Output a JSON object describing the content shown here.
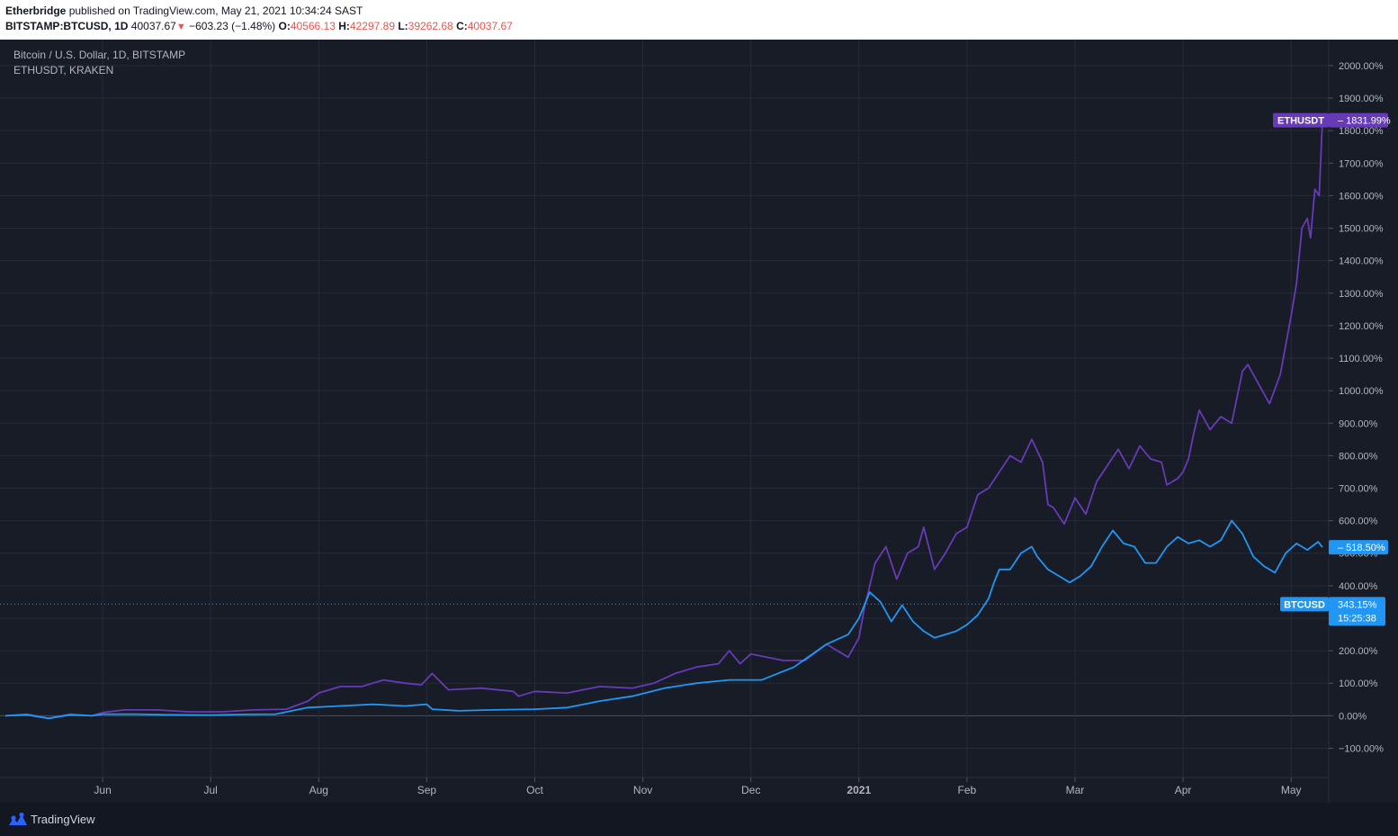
{
  "header": {
    "author": "Etherbridge",
    "published_text": "published on TradingView.com, May 21, 2021 10:34:24 SAST",
    "symbol": "BITSTAMP:BTCUSD, 1D",
    "last": "40037.67",
    "change_arrow": "▼",
    "change": "−603.23 (−1.48%)",
    "o_label": "O:",
    "o_value": "40566.13",
    "h_label": "H:",
    "h_value": "42297.89",
    "l_label": "L:",
    "l_value": "39262.68",
    "c_label": "C:",
    "c_value": "40037.67"
  },
  "legend": {
    "main": "Bitcoin / U.S. Dollar, 1D, BITSTAMP",
    "compare": "ETHUSDT, KRAKEN"
  },
  "footer": {
    "brand": "TradingView"
  },
  "colors": {
    "eth": "#673ab7",
    "btc": "#2196f3",
    "background": "#181c27",
    "grid": "#262b38",
    "text": "#b2b5be"
  },
  "chart_data": {
    "type": "line",
    "ylim": [
      -190,
      2080
    ],
    "y_ticks": [
      "2000.00%",
      "1900.00%",
      "1800.00%",
      "1700.00%",
      "1600.00%",
      "1500.00%",
      "1400.00%",
      "1300.00%",
      "1200.00%",
      "1100.00%",
      "1000.00%",
      "900.00%",
      "800.00%",
      "700.00%",
      "600.00%",
      "500.00%",
      "400.00%",
      "300.00%",
      "200.00%",
      "100.00%",
      "0.00%",
      "−100.00%"
    ],
    "x_ticks": [
      {
        "label": "Jun",
        "month": 1
      },
      {
        "label": "Jul",
        "month": 2
      },
      {
        "label": "Aug",
        "month": 3
      },
      {
        "label": "Sep",
        "month": 4
      },
      {
        "label": "Oct",
        "month": 5
      },
      {
        "label": "Nov",
        "month": 6
      },
      {
        "label": "Dec",
        "month": 7
      },
      {
        "label": "2021",
        "month": 8
      },
      {
        "label": "Feb",
        "month": 9
      },
      {
        "label": "Mar",
        "month": 10
      },
      {
        "label": "Apr",
        "month": 11
      },
      {
        "label": "May",
        "month": 12
      }
    ],
    "x_start_month": 0.1,
    "x_end_month": 12.29,
    "series": [
      {
        "name": "ETHUSDT",
        "color": "#673ab7",
        "last_label": "1831.99%",
        "points": [
          [
            0.1,
            0
          ],
          [
            0.3,
            5
          ],
          [
            0.5,
            -8
          ],
          [
            0.7,
            5
          ],
          [
            0.9,
            0
          ],
          [
            1.0,
            10
          ],
          [
            1.2,
            18
          ],
          [
            1.5,
            18
          ],
          [
            1.8,
            12
          ],
          [
            2.1,
            12
          ],
          [
            2.4,
            18
          ],
          [
            2.7,
            20
          ],
          [
            2.9,
            45
          ],
          [
            3.0,
            70
          ],
          [
            3.2,
            90
          ],
          [
            3.4,
            90
          ],
          [
            3.5,
            100
          ],
          [
            3.6,
            110
          ],
          [
            3.8,
            100
          ],
          [
            3.95,
            95
          ],
          [
            4.05,
            130
          ],
          [
            4.2,
            80
          ],
          [
            4.5,
            85
          ],
          [
            4.8,
            75
          ],
          [
            4.85,
            60
          ],
          [
            5.0,
            75
          ],
          [
            5.3,
            70
          ],
          [
            5.6,
            90
          ],
          [
            5.9,
            85
          ],
          [
            6.1,
            100
          ],
          [
            6.3,
            130
          ],
          [
            6.5,
            150
          ],
          [
            6.7,
            160
          ],
          [
            6.8,
            200
          ],
          [
            6.9,
            160
          ],
          [
            7.0,
            190
          ],
          [
            7.3,
            170
          ],
          [
            7.5,
            170
          ],
          [
            7.7,
            220
          ],
          [
            7.9,
            180
          ],
          [
            8.0,
            240
          ],
          [
            8.05,
            330
          ],
          [
            8.15,
            470
          ],
          [
            8.25,
            520
          ],
          [
            8.35,
            420
          ],
          [
            8.45,
            500
          ],
          [
            8.55,
            520
          ],
          [
            8.6,
            580
          ],
          [
            8.7,
            450
          ],
          [
            8.8,
            500
          ],
          [
            8.9,
            560
          ],
          [
            9.0,
            580
          ],
          [
            9.1,
            680
          ],
          [
            9.2,
            700
          ],
          [
            9.3,
            750
          ],
          [
            9.4,
            800
          ],
          [
            9.5,
            780
          ],
          [
            9.6,
            850
          ],
          [
            9.7,
            780
          ],
          [
            9.75,
            650
          ],
          [
            9.8,
            640
          ],
          [
            9.9,
            590
          ],
          [
            10.0,
            670
          ],
          [
            10.1,
            620
          ],
          [
            10.2,
            720
          ],
          [
            10.3,
            770
          ],
          [
            10.4,
            820
          ],
          [
            10.5,
            760
          ],
          [
            10.6,
            830
          ],
          [
            10.7,
            790
          ],
          [
            10.8,
            780
          ],
          [
            10.85,
            710
          ],
          [
            10.95,
            730
          ],
          [
            11.0,
            750
          ],
          [
            11.05,
            790
          ],
          [
            11.1,
            870
          ],
          [
            11.15,
            940
          ],
          [
            11.25,
            880
          ],
          [
            11.35,
            920
          ],
          [
            11.45,
            900
          ],
          [
            11.55,
            1060
          ],
          [
            11.6,
            1080
          ],
          [
            11.7,
            1020
          ],
          [
            11.8,
            960
          ],
          [
            11.9,
            1050
          ],
          [
            12.0,
            1230
          ],
          [
            12.05,
            1330
          ],
          [
            12.1,
            1500
          ],
          [
            12.15,
            1530
          ],
          [
            12.18,
            1470
          ],
          [
            12.22,
            1620
          ],
          [
            12.26,
            1600
          ],
          [
            12.29,
            1831.99
          ]
        ]
      },
      {
        "name": "BTCUSD",
        "color": "#2196f3",
        "last_label": "518.50%",
        "price_line_label": "343.15%",
        "countdown": "15:25:38",
        "price_line_value": 343.15,
        "points": [
          [
            0.1,
            0
          ],
          [
            0.3,
            3
          ],
          [
            0.5,
            -8
          ],
          [
            0.7,
            3
          ],
          [
            0.9,
            0
          ],
          [
            1.0,
            5
          ],
          [
            1.3,
            5
          ],
          [
            1.6,
            3
          ],
          [
            2.0,
            2
          ],
          [
            2.3,
            4
          ],
          [
            2.6,
            5
          ],
          [
            2.9,
            25
          ],
          [
            3.2,
            30
          ],
          [
            3.5,
            35
          ],
          [
            3.8,
            30
          ],
          [
            4.0,
            35
          ],
          [
            4.05,
            20
          ],
          [
            4.3,
            15
          ],
          [
            4.6,
            18
          ],
          [
            5.0,
            20
          ],
          [
            5.3,
            25
          ],
          [
            5.6,
            45
          ],
          [
            5.9,
            60
          ],
          [
            6.2,
            85
          ],
          [
            6.5,
            100
          ],
          [
            6.8,
            110
          ],
          [
            7.1,
            110
          ],
          [
            7.4,
            150
          ],
          [
            7.7,
            220
          ],
          [
            7.9,
            250
          ],
          [
            8.0,
            300
          ],
          [
            8.1,
            380
          ],
          [
            8.2,
            350
          ],
          [
            8.3,
            290
          ],
          [
            8.4,
            340
          ],
          [
            8.5,
            290
          ],
          [
            8.6,
            260
          ],
          [
            8.7,
            240
          ],
          [
            8.8,
            250
          ],
          [
            8.9,
            260
          ],
          [
            9.0,
            280
          ],
          [
            9.1,
            310
          ],
          [
            9.2,
            360
          ],
          [
            9.25,
            410
          ],
          [
            9.3,
            450
          ],
          [
            9.4,
            450
          ],
          [
            9.5,
            500
          ],
          [
            9.6,
            520
          ],
          [
            9.65,
            490
          ],
          [
            9.75,
            450
          ],
          [
            9.85,
            430
          ],
          [
            9.95,
            410
          ],
          [
            10.05,
            430
          ],
          [
            10.15,
            460
          ],
          [
            10.25,
            520
          ],
          [
            10.35,
            570
          ],
          [
            10.45,
            530
          ],
          [
            10.55,
            520
          ],
          [
            10.65,
            470
          ],
          [
            10.75,
            470
          ],
          [
            10.85,
            520
          ],
          [
            10.95,
            550
          ],
          [
            11.05,
            530
          ],
          [
            11.15,
            540
          ],
          [
            11.25,
            520
          ],
          [
            11.35,
            540
          ],
          [
            11.45,
            600
          ],
          [
            11.55,
            560
          ],
          [
            11.65,
            490
          ],
          [
            11.75,
            460
          ],
          [
            11.85,
            440
          ],
          [
            11.95,
            500
          ],
          [
            12.05,
            530
          ],
          [
            12.15,
            510
          ],
          [
            12.25,
            535
          ],
          [
            12.29,
            518.5
          ]
        ]
      }
    ]
  }
}
